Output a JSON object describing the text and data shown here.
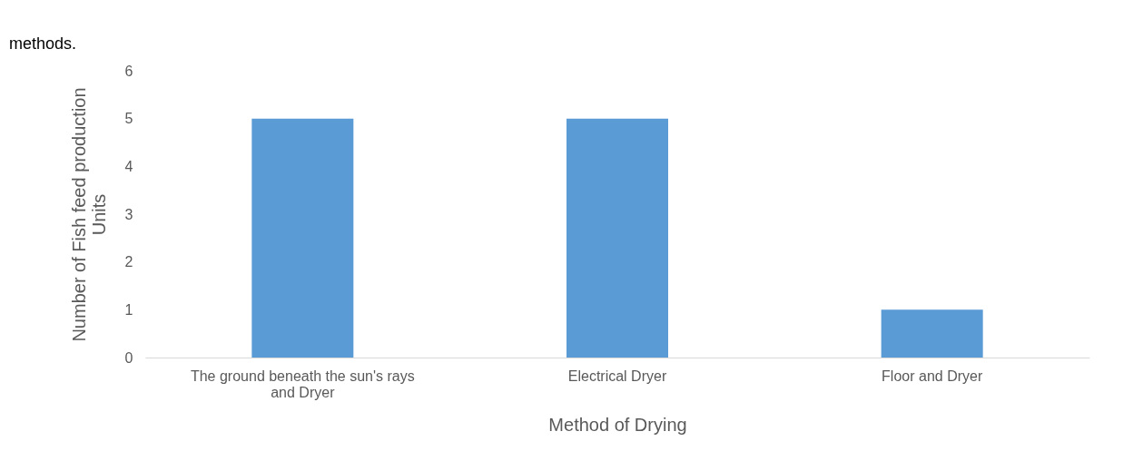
{
  "chart_data": {
    "type": "bar",
    "categories": [
      "The ground beneath the sun's rays and Dryer",
      "Electrical Dryer",
      "Floor and Dryer"
    ],
    "values": [
      5,
      5,
      1
    ],
    "color": "#5b9bd5",
    "xlabel": "Method of Drying",
    "ylabel": "Number of Fish feed production Units",
    "ylim": [
      0,
      6
    ],
    "yticks": [
      0,
      1,
      2,
      3,
      4,
      5,
      6
    ],
    "grid": false,
    "annotations": [
      "methods."
    ]
  }
}
